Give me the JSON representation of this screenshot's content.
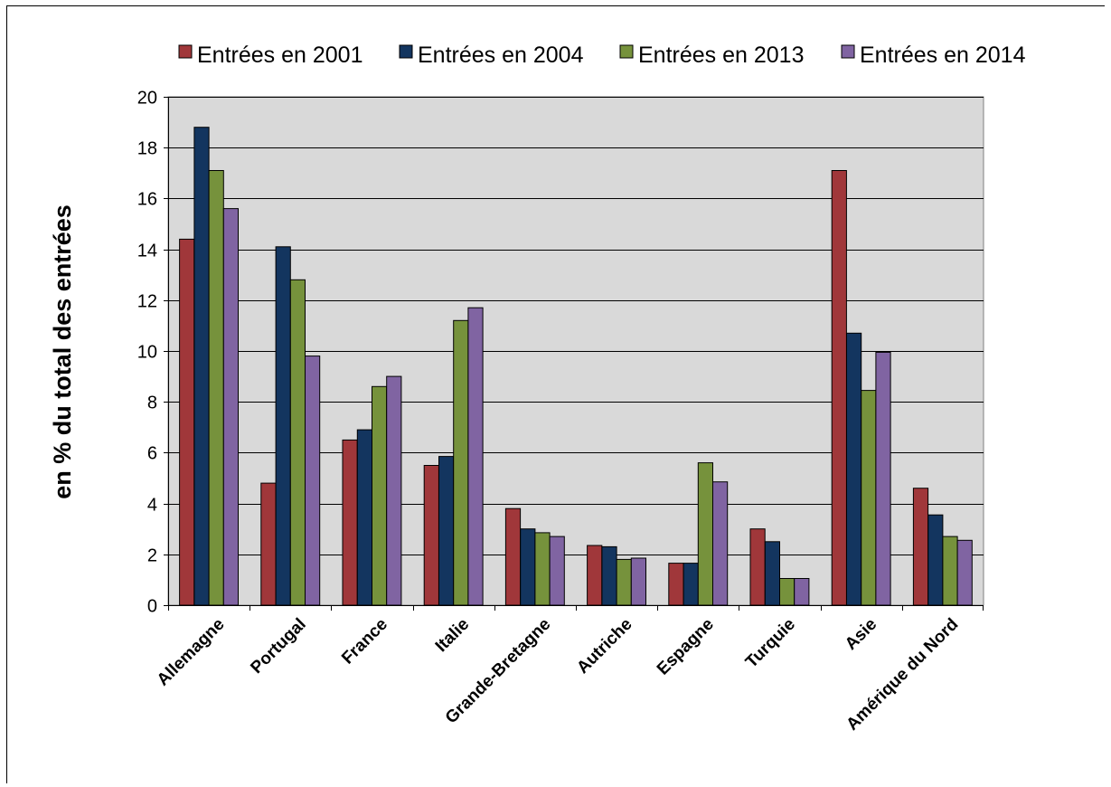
{
  "chart_data": {
    "type": "bar",
    "ylabel": "en % du total des entrées",
    "xlabel": "",
    "ylim": [
      0,
      20
    ],
    "ytick_step": 2,
    "grid": true,
    "legend_position": "top",
    "categories": [
      "Allemagne",
      "Portugal",
      "France",
      "Italie",
      "Grande-Bretagne",
      "Autriche",
      "Espagne",
      "Turquie",
      "Asie",
      "Amérique du Nord"
    ],
    "series": [
      {
        "name": "Entrées en 2001",
        "color": "#A0373A",
        "values": [
          14.4,
          4.8,
          6.5,
          5.5,
          3.8,
          2.35,
          1.65,
          3.0,
          17.1,
          4.6
        ]
      },
      {
        "name": "Entrées en 2004",
        "color": "#13355F",
        "values": [
          18.8,
          14.1,
          6.9,
          5.85,
          3.0,
          2.3,
          1.65,
          2.5,
          10.7,
          3.55
        ]
      },
      {
        "name": "Entrées en 2013",
        "color": "#76923C",
        "values": [
          17.1,
          12.8,
          8.6,
          11.2,
          2.85,
          1.8,
          5.6,
          1.05,
          8.45,
          2.7
        ]
      },
      {
        "name": "Entrées en 2014",
        "color": "#8064A2",
        "values": [
          15.6,
          9.8,
          9.0,
          11.7,
          2.7,
          1.85,
          4.85,
          1.05,
          9.95,
          2.55
        ]
      }
    ]
  }
}
